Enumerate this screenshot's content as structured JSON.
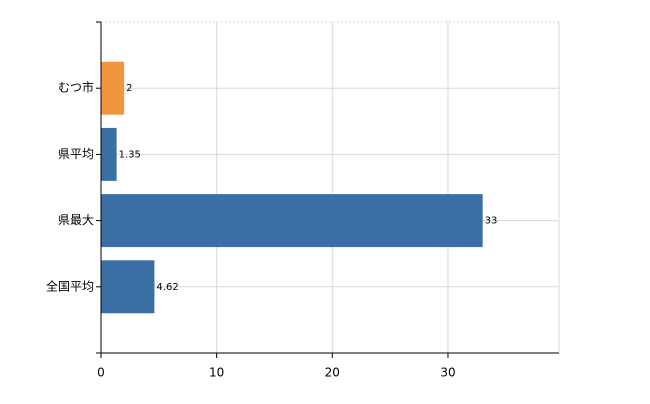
{
  "chart_data": {
    "type": "bar",
    "orientation": "horizontal",
    "categories": [
      "むつ市",
      "県平均",
      "県最大",
      "全国平均"
    ],
    "values": [
      2,
      1.35,
      33,
      4.62
    ],
    "colors": [
      "#f0963c",
      "#3a6ea5",
      "#3a6ea5",
      "#3a6ea5"
    ],
    "xlim": [
      0,
      39.6
    ],
    "xticks": [
      0,
      10,
      20,
      30
    ],
    "grid": true,
    "data_labels": true
  }
}
